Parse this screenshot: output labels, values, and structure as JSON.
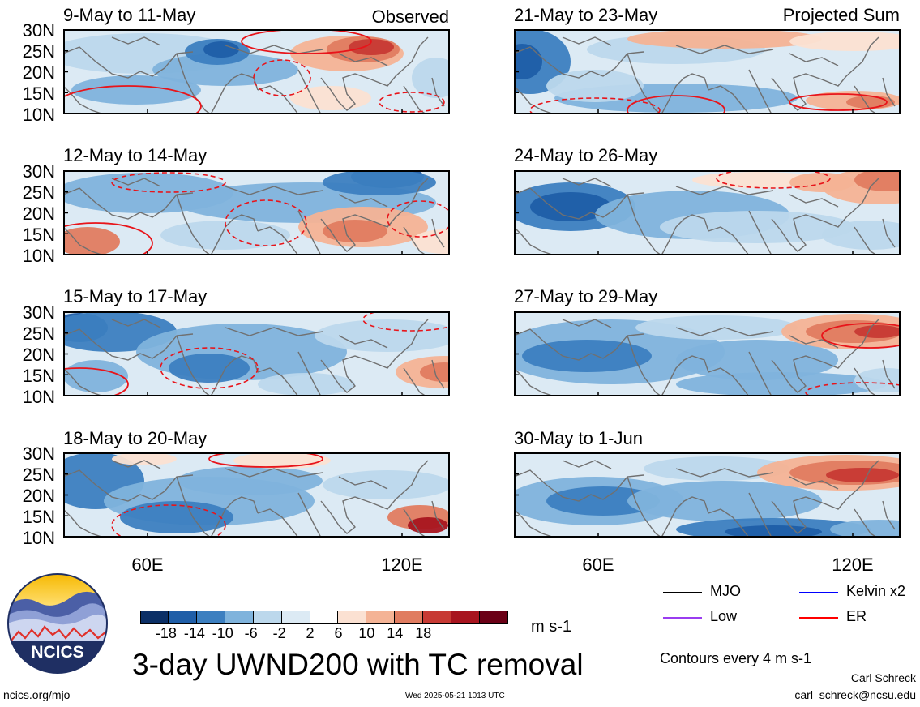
{
  "header": {
    "left_label": "Observed",
    "right_label": "Projected Sum"
  },
  "panels_left": [
    {
      "title": "9-May to 11-May"
    },
    {
      "title": "12-May to 14-May"
    },
    {
      "title": "15-May to 17-May"
    },
    {
      "title": "18-May to 20-May"
    }
  ],
  "panels_right": [
    {
      "title": "21-May to 23-May"
    },
    {
      "title": "24-May to 26-May"
    },
    {
      "title": "27-May to 29-May"
    },
    {
      "title": "30-May to 1-Jun"
    }
  ],
  "lat_ticks": [
    "30N",
    "25N",
    "20N",
    "15N",
    "10N"
  ],
  "lon_ticks": [
    "60E",
    "120E"
  ],
  "colorbar": {
    "labels": [
      "-18",
      "-14",
      "-10",
      "-6",
      "-2",
      "2",
      "6",
      "10",
      "14",
      "18"
    ],
    "colors": [
      "#0b2f66",
      "#1f5ea8",
      "#3c7fc0",
      "#7fb3dc",
      "#bcd8ec",
      "#dceaf4",
      "#ffffff",
      "#fbe1d2",
      "#f4b395",
      "#e07c60",
      "#c73a34",
      "#a8151f",
      "#6b0016"
    ],
    "units": "m s-1"
  },
  "legend": {
    "items": [
      {
        "label": "MJO",
        "color": "#000000"
      },
      {
        "label": "Kelvin x2",
        "color": "#0000ff"
      },
      {
        "label": "Low",
        "color": "#9a3cf0"
      },
      {
        "label": "ER",
        "color": "#ff0000"
      }
    ],
    "contour_note": "Contours every 4 m s-1"
  },
  "main_title": "3-day UWND200 with TC removal",
  "logo": {
    "text": "NCICS"
  },
  "footer": {
    "url": "ncics.org/mjo",
    "timestamp": "Wed 2025-05-21 1013 UTC",
    "author": "Carl Schreck",
    "email": "carl_schreck@ncsu.edu"
  }
}
